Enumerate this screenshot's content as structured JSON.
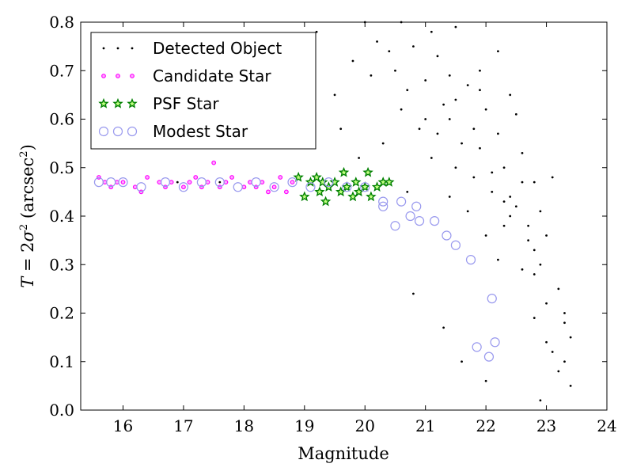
{
  "chart_data": {
    "type": "scatter",
    "title": "",
    "xlabel": "Magnitude",
    "ylabel": {
      "symbol": "T",
      "equals": " = 2",
      "sigma": "σ",
      "sup": "2",
      "unit_open": " (arcsec",
      "unit_sup": "2",
      "unit_close": ")"
    },
    "xlim": [
      15.3,
      24
    ],
    "ylim": [
      0.0,
      0.8
    ],
    "xticks": [
      "16",
      "17",
      "18",
      "19",
      "20",
      "21",
      "22",
      "23",
      "24"
    ],
    "yticks": [
      "0.0",
      "0.1",
      "0.2",
      "0.3",
      "0.4",
      "0.5",
      "0.6",
      "0.7",
      "0.8"
    ],
    "grid": false,
    "legend_position": "top-left",
    "series": [
      {
        "name": "Detected Object",
        "marker": "dot",
        "color": "#000000",
        "x": [
          16.9,
          17.6,
          18.5,
          19.2,
          19.5,
          19.8,
          20.0,
          20.2,
          20.3,
          20.5,
          20.6,
          20.7,
          20.8,
          20.9,
          21.0,
          21.1,
          21.2,
          21.3,
          21.4,
          21.5,
          21.6,
          21.7,
          21.8,
          21.9,
          22.0,
          22.1,
          22.2,
          22.3,
          22.4,
          22.5,
          22.6,
          22.7,
          22.8,
          22.9,
          23.0,
          23.1,
          23.2,
          23.3,
          23.4,
          20.8,
          21.3,
          21.6,
          22.0,
          22.4,
          22.7,
          23.0,
          23.4,
          19.6,
          19.9,
          20.4,
          20.7,
          21.1,
          21.5,
          21.8,
          22.2,
          22.6,
          22.9,
          23.3,
          20.1,
          20.6,
          21.0,
          21.4,
          21.9,
          22.3,
          22.8,
          23.1,
          21.2,
          21.7,
          22.1,
          22.5,
          22.8,
          23.2,
          21.4,
          21.9,
          22.3,
          22.6,
          23.0,
          22.0,
          22.4,
          22.8,
          23.3,
          21.5,
          22.2,
          22.9
        ],
        "y": [
          0.47,
          0.47,
          0.46,
          0.78,
          0.65,
          0.72,
          0.8,
          0.76,
          0.55,
          0.7,
          0.62,
          0.66,
          0.75,
          0.58,
          0.68,
          0.52,
          0.73,
          0.63,
          0.6,
          0.79,
          0.55,
          0.67,
          0.48,
          0.7,
          0.62,
          0.45,
          0.57,
          0.5,
          0.65,
          0.42,
          0.53,
          0.38,
          0.47,
          0.3,
          0.36,
          0.48,
          0.25,
          0.2,
          0.15,
          0.24,
          0.17,
          0.1,
          0.06,
          0.44,
          0.35,
          0.22,
          0.05,
          0.58,
          0.52,
          0.74,
          0.45,
          0.78,
          0.5,
          0.58,
          0.74,
          0.47,
          0.41,
          0.18,
          0.69,
          0.8,
          0.6,
          0.44,
          0.66,
          0.38,
          0.28,
          0.12,
          0.57,
          0.41,
          0.49,
          0.61,
          0.33,
          0.08,
          0.69,
          0.54,
          0.43,
          0.29,
          0.14,
          0.36,
          0.4,
          0.19,
          0.1,
          0.64,
          0.31,
          0.02
        ]
      },
      {
        "name": "Candidate Star",
        "marker": "dot",
        "color": "#ff00ff",
        "x": [
          15.6,
          15.7,
          15.8,
          15.9,
          16.0,
          16.2,
          16.3,
          16.4,
          16.6,
          16.7,
          16.8,
          17.0,
          17.1,
          17.2,
          17.3,
          17.4,
          17.5,
          17.6,
          17.7,
          17.8,
          18.0,
          18.1,
          18.2,
          18.3,
          18.4,
          18.5,
          18.6,
          18.7,
          18.8
        ],
        "y": [
          0.48,
          0.47,
          0.46,
          0.47,
          0.47,
          0.46,
          0.45,
          0.48,
          0.47,
          0.46,
          0.47,
          0.46,
          0.47,
          0.48,
          0.46,
          0.47,
          0.51,
          0.46,
          0.47,
          0.48,
          0.46,
          0.47,
          0.46,
          0.47,
          0.45,
          0.46,
          0.48,
          0.45,
          0.47
        ]
      },
      {
        "name": "PSF Star",
        "marker": "star",
        "color": "#008000",
        "x": [
          18.9,
          19.0,
          19.1,
          19.2,
          19.25,
          19.3,
          19.35,
          19.4,
          19.5,
          19.6,
          19.65,
          19.7,
          19.8,
          19.85,
          19.9,
          20.0,
          20.05,
          20.1,
          20.2,
          20.3,
          20.4
        ],
        "y": [
          0.48,
          0.44,
          0.47,
          0.48,
          0.45,
          0.47,
          0.43,
          0.46,
          0.47,
          0.45,
          0.49,
          0.46,
          0.44,
          0.47,
          0.45,
          0.46,
          0.49,
          0.44,
          0.46,
          0.47,
          0.47
        ]
      },
      {
        "name": "Modest Star",
        "marker": "open-circle",
        "color": "#9999ee",
        "x": [
          15.6,
          15.8,
          16.0,
          16.3,
          16.7,
          17.0,
          17.3,
          17.6,
          17.9,
          18.2,
          18.5,
          18.8,
          19.1,
          19.4,
          19.7,
          20.0,
          20.3,
          20.3,
          20.5,
          20.6,
          20.75,
          20.85,
          20.9,
          21.15,
          21.35,
          21.5,
          21.75,
          21.85,
          22.05,
          22.1,
          22.15
        ],
        "y": [
          0.47,
          0.47,
          0.47,
          0.46,
          0.47,
          0.46,
          0.47,
          0.47,
          0.46,
          0.47,
          0.46,
          0.47,
          0.46,
          0.47,
          0.46,
          0.46,
          0.43,
          0.42,
          0.38,
          0.43,
          0.4,
          0.42,
          0.39,
          0.39,
          0.36,
          0.34,
          0.31,
          0.13,
          0.11,
          0.23,
          0.14
        ]
      }
    ]
  }
}
